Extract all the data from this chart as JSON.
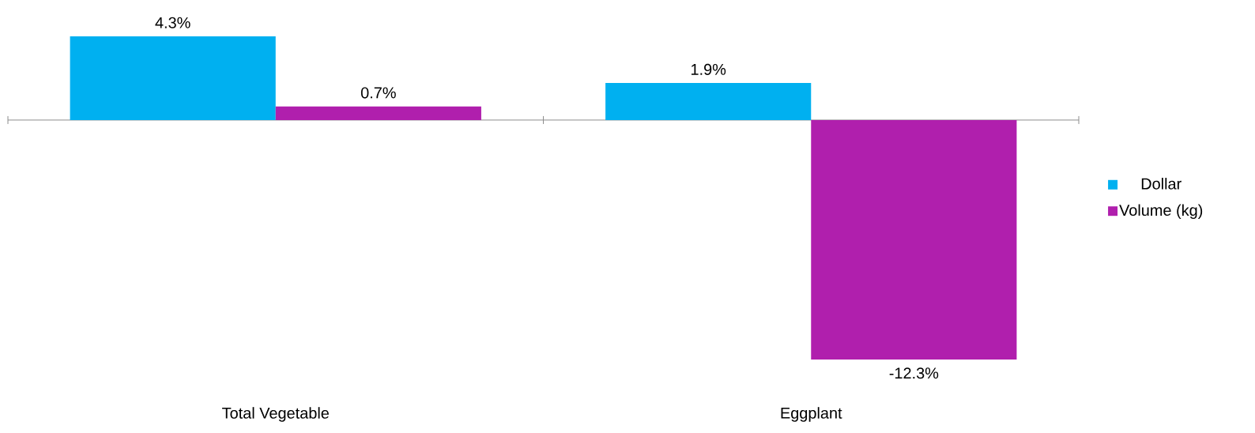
{
  "chart_data": {
    "type": "bar",
    "categories": [
      "Total Vegetable",
      "Eggplant"
    ],
    "series": [
      {
        "name": "Dollar",
        "color": "#00b0f0",
        "values": [
          4.3,
          1.9
        ],
        "value_labels": [
          "4.3%",
          "1.9%"
        ]
      },
      {
        "name": "Volume (kg)",
        "color": "#b01fad",
        "values": [
          0.7,
          -12.3
        ],
        "value_labels": [
          "0.7%",
          "-12.3%"
        ]
      }
    ],
    "legend": "right"
  }
}
